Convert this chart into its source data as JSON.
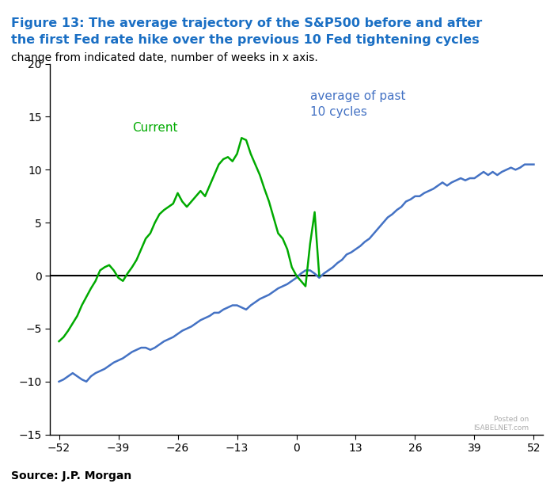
{
  "title_line1": "Figure 13: The average trajectory of the S&P500 before and after",
  "title_line2": "the first Fed rate hike over the previous 10 Fed tightening cycles",
  "subtitle": "change from indicated date, number of weeks in x axis.",
  "source": "Source: J.P. Morgan",
  "title_color": "#1A6FC4",
  "subtitle_color": "#000000",
  "bg_color": "#ffffff",
  "blue_color": "#4472C4",
  "green_color": "#00AA00",
  "xlim": [
    -54,
    54
  ],
  "ylim": [
    -15,
    20
  ],
  "xticks": [
    -52,
    -39,
    -26,
    -13,
    0,
    13,
    26,
    39,
    52
  ],
  "yticks": [
    -15,
    -10,
    -5,
    0,
    5,
    10,
    15,
    20
  ],
  "annotation_blue": "average of past\n10 cycles",
  "annotation_green": "Current",
  "annotation_blue_color": "#4472C4",
  "annotation_green_color": "#00AA00",
  "blue_x": [
    -52,
    -51,
    -50,
    -49,
    -48,
    -47,
    -46,
    -45,
    -44,
    -43,
    -42,
    -41,
    -40,
    -39,
    -38,
    -37,
    -36,
    -35,
    -34,
    -33,
    -32,
    -31,
    -30,
    -29,
    -28,
    -27,
    -26,
    -25,
    -24,
    -23,
    -22,
    -21,
    -20,
    -19,
    -18,
    -17,
    -16,
    -15,
    -14,
    -13,
    -12,
    -11,
    -10,
    -9,
    -8,
    -7,
    -6,
    -5,
    -4,
    -3,
    -2,
    -1,
    0,
    1,
    2,
    3,
    4,
    5,
    6,
    7,
    8,
    9,
    10,
    11,
    12,
    13,
    14,
    15,
    16,
    17,
    18,
    19,
    20,
    21,
    22,
    23,
    24,
    25,
    26,
    27,
    28,
    29,
    30,
    31,
    32,
    33,
    34,
    35,
    36,
    37,
    38,
    39,
    40,
    41,
    42,
    43,
    44,
    45,
    46,
    47,
    48,
    49,
    50,
    51,
    52
  ],
  "blue_y": [
    -10.0,
    -9.8,
    -9.5,
    -9.2,
    -9.5,
    -9.8,
    -10.0,
    -9.5,
    -9.2,
    -9.0,
    -8.8,
    -8.5,
    -8.2,
    -8.0,
    -7.8,
    -7.5,
    -7.2,
    -7.0,
    -6.8,
    -6.8,
    -7.0,
    -6.8,
    -6.5,
    -6.2,
    -6.0,
    -5.8,
    -5.5,
    -5.2,
    -5.0,
    -4.8,
    -4.5,
    -4.2,
    -4.0,
    -3.8,
    -3.5,
    -3.5,
    -3.2,
    -3.0,
    -2.8,
    -2.8,
    -3.0,
    -3.2,
    -2.8,
    -2.5,
    -2.2,
    -2.0,
    -1.8,
    -1.5,
    -1.2,
    -1.0,
    -0.8,
    -0.5,
    -0.2,
    0.2,
    0.5,
    0.5,
    0.2,
    -0.2,
    0.2,
    0.5,
    0.8,
    1.2,
    1.5,
    2.0,
    2.2,
    2.5,
    2.8,
    3.2,
    3.5,
    4.0,
    4.5,
    5.0,
    5.5,
    5.8,
    6.2,
    6.5,
    7.0,
    7.2,
    7.5,
    7.5,
    7.8,
    8.0,
    8.2,
    8.5,
    8.8,
    8.5,
    8.8,
    9.0,
    9.2,
    9.0,
    9.2,
    9.2,
    9.5,
    9.8,
    9.5,
    9.8,
    9.5,
    9.8,
    10.0,
    10.2,
    10.0,
    10.2,
    10.5,
    10.5,
    10.5
  ],
  "green_x": [
    -52,
    -51,
    -50,
    -49,
    -48,
    -47,
    -46,
    -45,
    -44,
    -43,
    -42,
    -41,
    -40,
    -39,
    -38,
    -37,
    -36,
    -35,
    -34,
    -33,
    -32,
    -31,
    -30,
    -29,
    -28,
    -27,
    -26,
    -25,
    -24,
    -23,
    -22,
    -21,
    -20,
    -19,
    -18,
    -17,
    -16,
    -15,
    -14,
    -13,
    -12,
    -11,
    -10,
    -9,
    -8,
    -7,
    -6,
    -5,
    -4,
    -3,
    -2,
    -1,
    0,
    1,
    2,
    3,
    4,
    5
  ],
  "green_y": [
    -6.2,
    -5.8,
    -5.2,
    -4.5,
    -3.8,
    -2.8,
    -2.0,
    -1.2,
    -0.5,
    0.5,
    0.8,
    1.0,
    0.5,
    -0.2,
    -0.5,
    0.2,
    0.8,
    1.5,
    2.5,
    3.5,
    4.0,
    5.0,
    5.8,
    6.2,
    6.5,
    6.8,
    7.8,
    7.0,
    6.5,
    7.0,
    7.5,
    8.0,
    7.5,
    8.5,
    9.5,
    10.5,
    11.0,
    11.2,
    10.8,
    11.5,
    13.0,
    12.8,
    11.5,
    10.5,
    9.5,
    8.2,
    7.0,
    5.5,
    4.0,
    3.5,
    2.5,
    0.8,
    0.0,
    -0.5,
    -1.0,
    3.0,
    6.0,
    0.0
  ]
}
